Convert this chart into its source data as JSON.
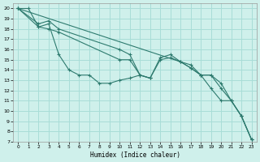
{
  "bg_color": "#cff0eb",
  "grid_color": "#a8ddd7",
  "line_color": "#2d7a6e",
  "xlabel": "Humidex (Indice chaleur)",
  "xlim": [
    -0.5,
    23.5
  ],
  "ylim": [
    7,
    20.5
  ],
  "yticks": [
    7,
    8,
    9,
    10,
    11,
    12,
    13,
    14,
    15,
    16,
    17,
    18,
    19,
    20
  ],
  "xticks": [
    0,
    1,
    2,
    3,
    4,
    5,
    6,
    7,
    8,
    9,
    10,
    11,
    12,
    13,
    14,
    15,
    16,
    17,
    18,
    19,
    20,
    21,
    22,
    23
  ],
  "series": [
    {
      "x": [
        0,
        1,
        2,
        3,
        4,
        5,
        6,
        7,
        8,
        9,
        10,
        11,
        12,
        13
      ],
      "y": [
        20,
        20,
        18.2,
        18.5,
        15.5,
        14.0,
        13.5,
        13.5,
        12.7,
        12.7,
        13.0,
        13.2,
        13.5,
        13.2
      ]
    },
    {
      "x": [
        0,
        16,
        17,
        18,
        19,
        20,
        21,
        22,
        23
      ],
      "y": [
        20,
        14.8,
        14.2,
        13.5,
        12.2,
        11.0,
        11.0,
        9.5,
        7.2
      ]
    },
    {
      "x": [
        0,
        2,
        3,
        4,
        10,
        11,
        12,
        13,
        14,
        15,
        16,
        17,
        18,
        19,
        20,
        21,
        22,
        23
      ],
      "y": [
        20,
        18.2,
        18.0,
        17.7,
        15.0,
        15.0,
        13.5,
        13.2,
        15.0,
        15.2,
        14.8,
        14.2,
        13.5,
        13.5,
        12.7,
        11.0,
        9.5,
        7.2
      ]
    },
    {
      "x": [
        0,
        2,
        3,
        4,
        10,
        11,
        12,
        13,
        14,
        15,
        16,
        17,
        18,
        19,
        20,
        21,
        22,
        23
      ],
      "y": [
        20,
        18.5,
        18.8,
        18.0,
        16.0,
        15.5,
        13.5,
        13.2,
        15.2,
        15.5,
        14.8,
        14.5,
        13.5,
        13.5,
        12.2,
        11.0,
        9.5,
        7.2
      ]
    }
  ]
}
